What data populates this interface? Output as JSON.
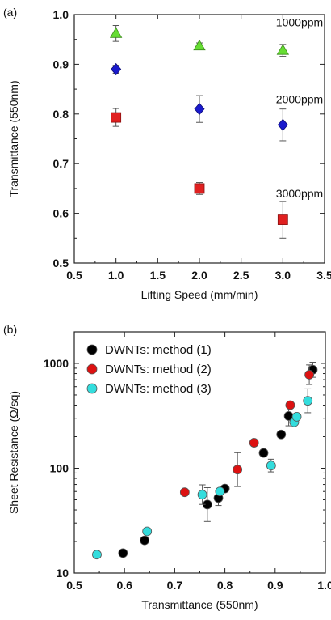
{
  "chart_data": [
    {
      "type": "scatter",
      "panel_label": "(a)",
      "xlabel": "Lifting Speed (mm/min)",
      "ylabel": "Transmittance (550nm)",
      "xlim": [
        0.5,
        3.5
      ],
      "ylim": [
        0.5,
        1.0
      ],
      "xticks": [
        0.5,
        1.0,
        1.5,
        2.0,
        2.5,
        3.0,
        3.5
      ],
      "xtick_labels": [
        "0.5",
        "1.0",
        "1.5",
        "2.0",
        "2.5",
        "3.0",
        "3.5"
      ],
      "yticks": [
        0.5,
        0.6,
        0.7,
        0.8,
        0.9,
        1.0
      ],
      "ytick_labels": [
        "0.5",
        "0.6",
        "0.7",
        "0.8",
        "0.9",
        "1.0"
      ],
      "grid": false,
      "series": [
        {
          "name": "1000ppm",
          "marker": "triangle",
          "color": "#66dd33",
          "x": [
            1.0,
            2.0,
            3.0
          ],
          "y": [
            0.962,
            0.937,
            0.928
          ],
          "err": [
            0.016,
            0.006,
            0.012
          ]
        },
        {
          "name": "2000ppm",
          "marker": "diamond",
          "color": "#1a1acc",
          "x": [
            1.0,
            2.0,
            3.0
          ],
          "y": [
            0.89,
            0.81,
            0.778
          ],
          "err": [
            0.008,
            0.027,
            0.032
          ]
        },
        {
          "name": "3000ppm",
          "marker": "square",
          "color": "#e02020",
          "x": [
            1.0,
            2.0,
            3.0
          ],
          "y": [
            0.793,
            0.65,
            0.587
          ],
          "err": [
            0.018,
            0.012,
            0.037
          ]
        }
      ],
      "annotations": [
        {
          "text": "1000ppm",
          "x": 3.2,
          "y": 0.976
        },
        {
          "text": "2000ppm",
          "x": 3.2,
          "y": 0.822
        },
        {
          "text": "3000ppm",
          "x": 3.2,
          "y": 0.632
        }
      ]
    },
    {
      "type": "scatter",
      "panel_label": "(b)",
      "xlabel": "Transmittance (550nm)",
      "ylabel": "Sheet Resistance (Ω/sq)",
      "xlim": [
        0.5,
        1.0
      ],
      "ylim": [
        10,
        2000
      ],
      "yscale": "log",
      "xticks": [
        0.5,
        0.6,
        0.7,
        0.8,
        0.9,
        1.0
      ],
      "xtick_labels": [
        "0.5",
        "0.6",
        "0.7",
        "0.8",
        "0.9",
        "1.0"
      ],
      "yticks": [
        10,
        100,
        1000
      ],
      "ytick_labels": [
        "10",
        "100",
        "1000"
      ],
      "grid": false,
      "legend_position": "top-left",
      "series": [
        {
          "name": "DWNTs: method (1)",
          "marker": "circle",
          "color": "#000000",
          "x": [
            0.597,
            0.64,
            0.765,
            0.787,
            0.8,
            0.877,
            0.912,
            0.927,
            0.975
          ],
          "y": [
            15.5,
            20.5,
            45,
            52,
            64,
            140,
            210,
            315,
            870
          ],
          "err": [
            0,
            0,
            0.15,
            0.06,
            0,
            0,
            0,
            0.08,
            0.06
          ]
        },
        {
          "name": "DWNTs: method (2)",
          "marker": "circle",
          "color": "#dd1111",
          "x": [
            0.72,
            0.825,
            0.858,
            0.93,
            0.968
          ],
          "y": [
            59,
            97,
            175,
            400,
            780
          ],
          "err": [
            0,
            0.15,
            0,
            0,
            0.08
          ]
        },
        {
          "name": "DWNTs: method (3)",
          "marker": "circle",
          "color": "#33dddd",
          "x": [
            0.545,
            0.645,
            0.755,
            0.79,
            0.892,
            0.938,
            0.943,
            0.965
          ],
          "y": [
            15,
            25,
            56,
            60,
            106,
            275,
            310,
            440
          ],
          "err": [
            0,
            0,
            0.08,
            0,
            0.05,
            0,
            0,
            0.1
          ]
        }
      ]
    }
  ]
}
